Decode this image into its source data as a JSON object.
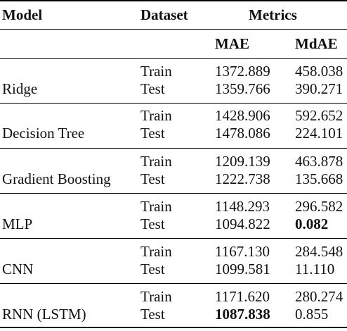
{
  "headers": {
    "model": "Model",
    "dataset": "Dataset",
    "metrics": "Metrics",
    "mae": "MAE",
    "mdae": "MdAE"
  },
  "rows": [
    {
      "model": "Ridge",
      "train": {
        "label": "Train",
        "mae": "1372.889",
        "mdae": "458.038"
      },
      "test": {
        "label": "Test",
        "mae": "1359.766",
        "mdae": "390.271"
      }
    },
    {
      "model": "Decision Tree",
      "train": {
        "label": "Train",
        "mae": "1428.906",
        "mdae": "592.652"
      },
      "test": {
        "label": "Test",
        "mae": "1478.086",
        "mdae": "224.101"
      }
    },
    {
      "model": "Gradient Boosting",
      "train": {
        "label": "Train",
        "mae": "1209.139",
        "mdae": "463.878"
      },
      "test": {
        "label": "Test",
        "mae": "1222.738",
        "mdae": "135.668"
      }
    },
    {
      "model": "MLP",
      "train": {
        "label": "Train",
        "mae": "1148.293",
        "mdae": "296.582"
      },
      "test": {
        "label": "Test",
        "mae": "1094.822",
        "mdae": "0.082",
        "mdae_bold": true
      }
    },
    {
      "model": "CNN",
      "train": {
        "label": "Train",
        "mae": "1167.130",
        "mdae": "284.548"
      },
      "test": {
        "label": "Test",
        "mae": "1099.581",
        "mdae": "11.110"
      }
    },
    {
      "model": "RNN (LSTM)",
      "train": {
        "label": "Train",
        "mae": "1171.620",
        "mdae": "280.274"
      },
      "test": {
        "label": "Test",
        "mae": "1087.838",
        "mdae": "0.855",
        "mae_bold": true
      }
    }
  ]
}
